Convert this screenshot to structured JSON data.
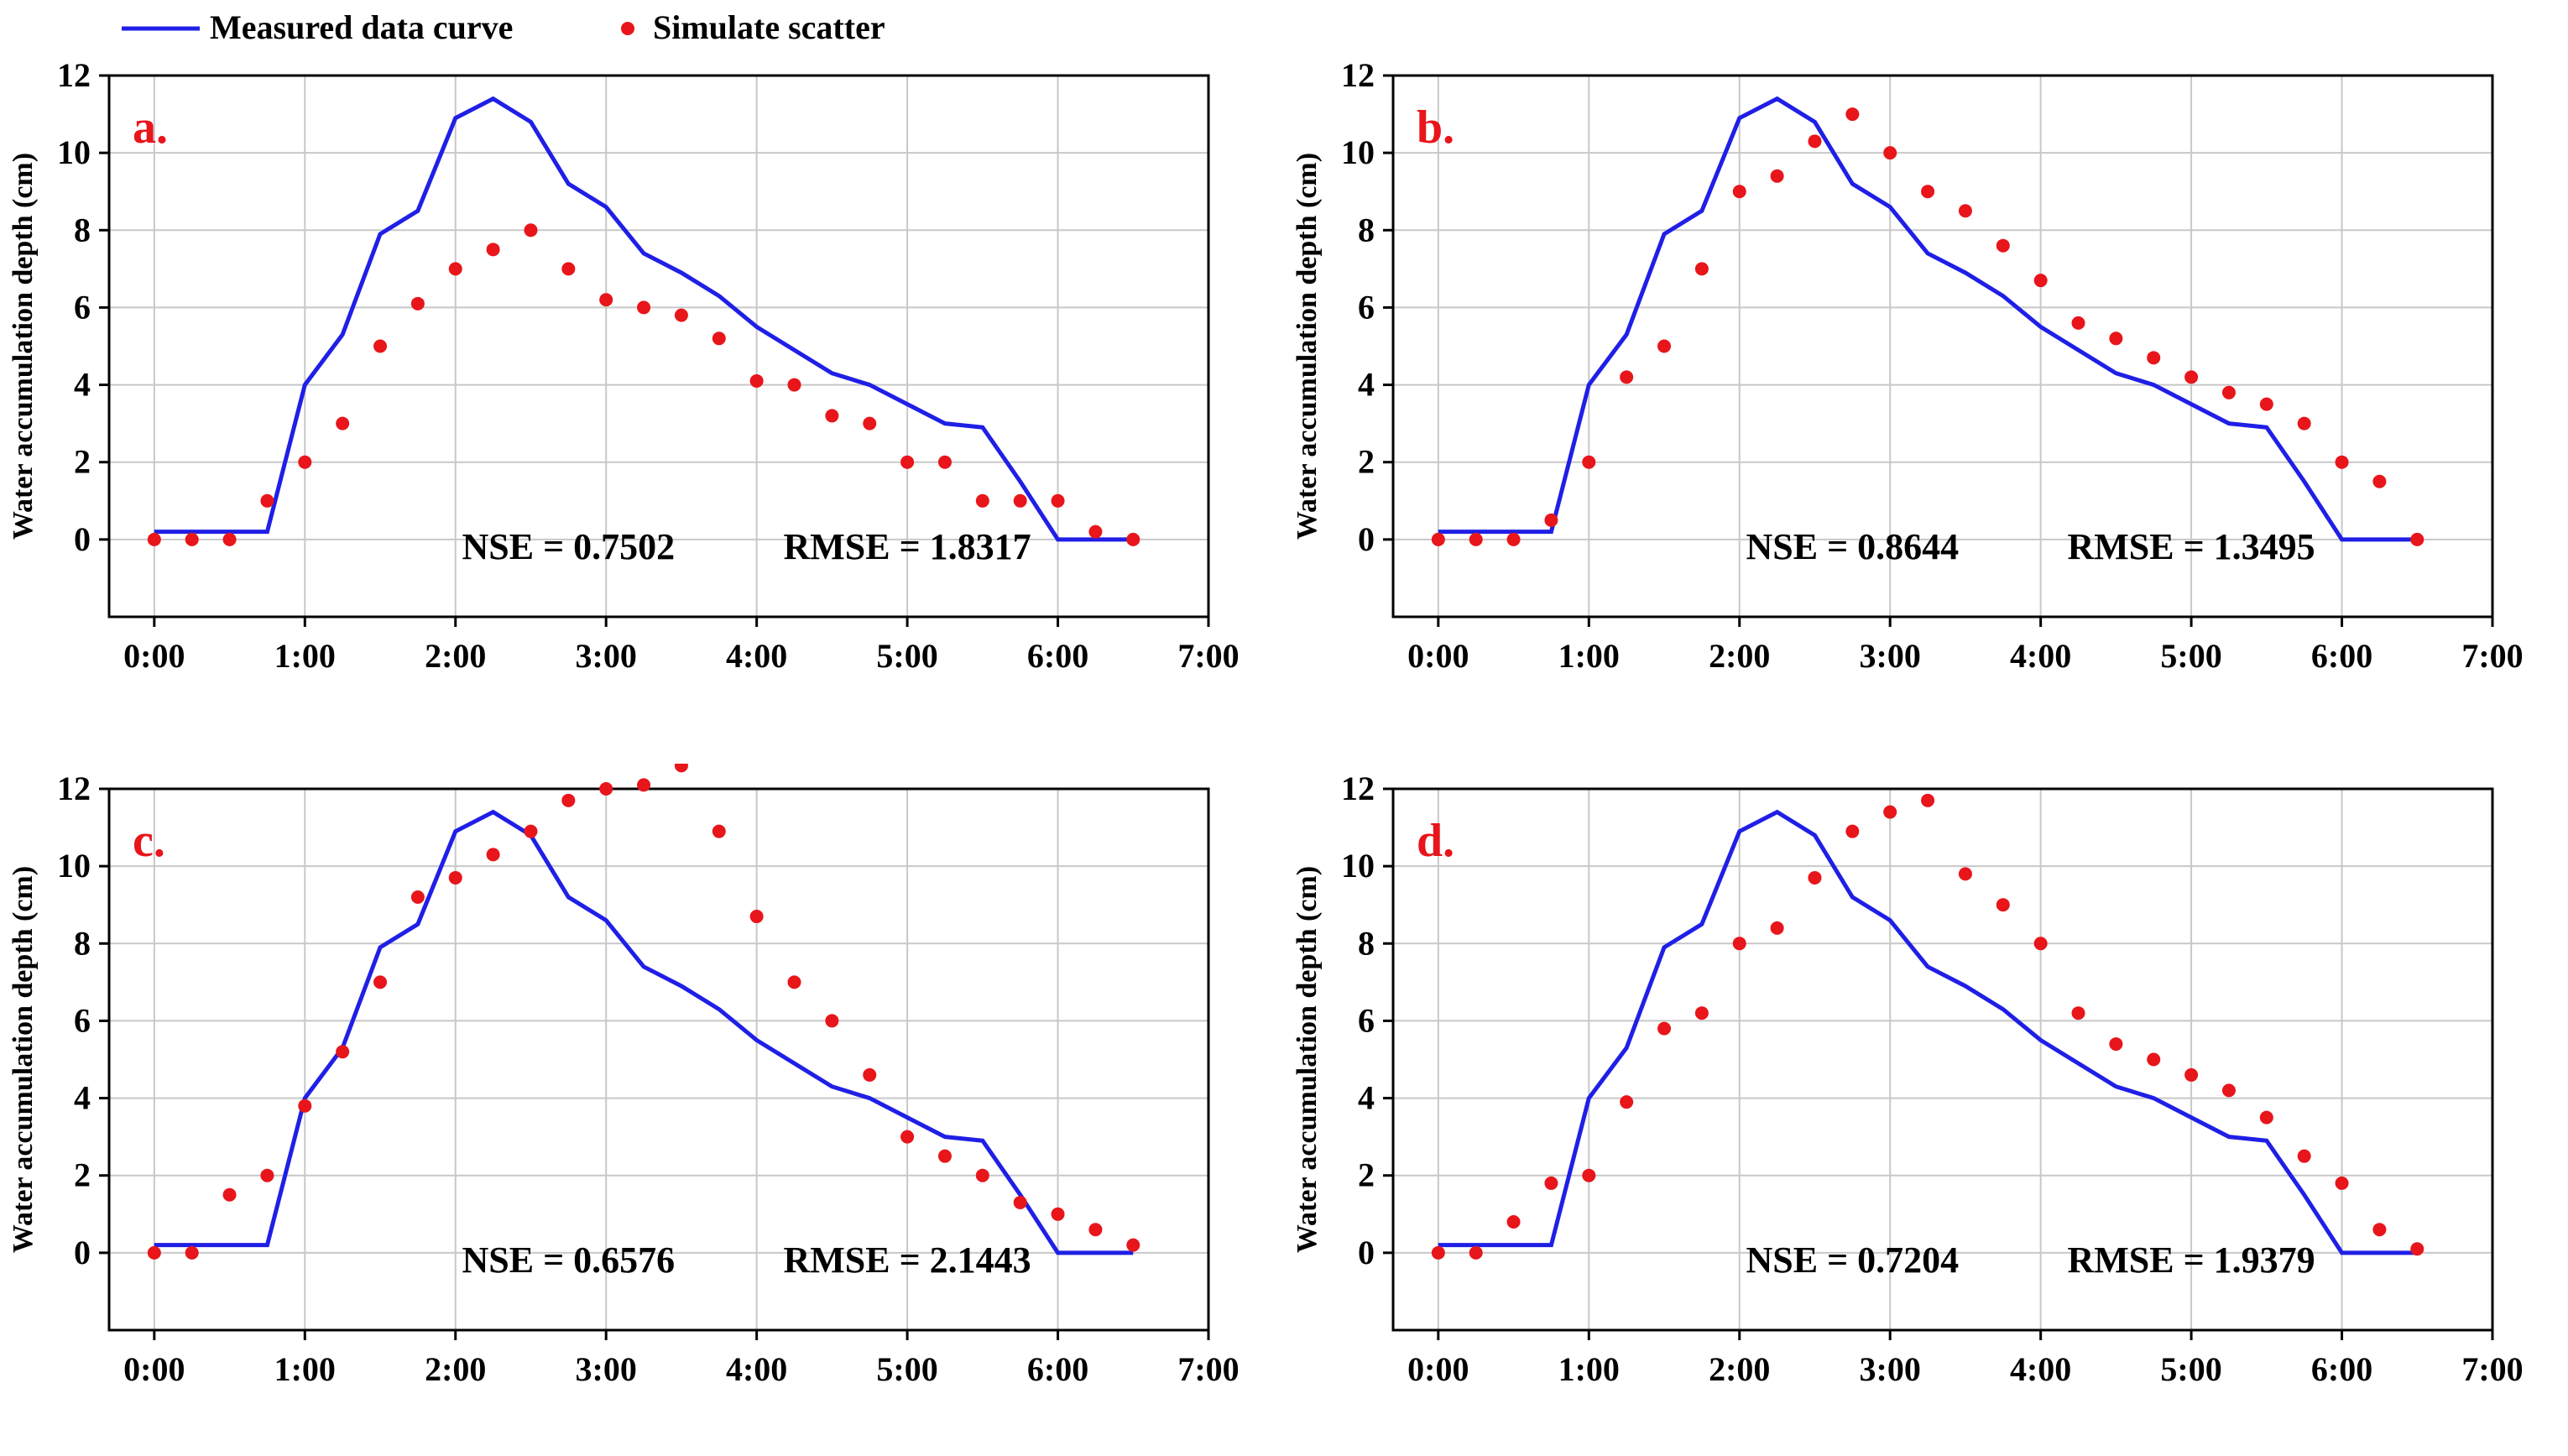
{
  "legend": {
    "line_label": "Measured data curve",
    "scatter_label": "Simulate scatter"
  },
  "colors": {
    "line": "#1f1fe6",
    "scatter": "#e8151b",
    "panel_letter": "#e8151b",
    "grid": "#c8c8c8"
  },
  "chart_data": [
    {
      "type": "line+scatter",
      "panel_label": "a.",
      "ylabel": "Water accumulation depth (cm)",
      "xlabel": "",
      "xlim": [
        -0.3,
        7.0
      ],
      "ylim": [
        -2,
        12
      ],
      "xticks": [
        0,
        1,
        2,
        3,
        4,
        5,
        6,
        7
      ],
      "xtick_labels": [
        "0:00",
        "1:00",
        "2:00",
        "3:00",
        "4:00",
        "5:00",
        "6:00",
        "7:00"
      ],
      "yticks": [
        0,
        2,
        4,
        6,
        8,
        10,
        12
      ],
      "ytick_labels": [
        "0",
        "2",
        "4",
        "6",
        "8",
        "10",
        "12"
      ],
      "nse_text": "NSE = 0.7502",
      "rmse_text": "RMSE = 1.8317",
      "series": [
        {
          "name": "Measured data curve",
          "kind": "line",
          "x": [
            0,
            0.25,
            0.5,
            0.75,
            1.0,
            1.25,
            1.5,
            1.75,
            2.0,
            2.25,
            2.5,
            2.75,
            3.0,
            3.25,
            3.5,
            3.75,
            4.0,
            4.25,
            4.5,
            4.75,
            5.0,
            5.25,
            5.5,
            5.75,
            6.0,
            6.25,
            6.5
          ],
          "y": [
            0.2,
            0.2,
            0.2,
            0.2,
            4.0,
            5.3,
            7.9,
            8.5,
            10.9,
            11.4,
            10.8,
            9.2,
            8.6,
            7.4,
            6.9,
            6.3,
            5.5,
            4.9,
            4.3,
            4.0,
            3.5,
            3.0,
            2.9,
            1.5,
            0.0,
            0.0,
            0.0
          ]
        },
        {
          "name": "Simulate scatter",
          "kind": "scatter",
          "x": [
            0,
            0.25,
            0.5,
            0.75,
            1.0,
            1.25,
            1.5,
            1.75,
            2.0,
            2.25,
            2.5,
            2.75,
            3.0,
            3.25,
            3.5,
            3.75,
            4.0,
            4.25,
            4.5,
            4.75,
            5.0,
            5.25,
            5.5,
            5.75,
            6.0,
            6.25,
            6.5
          ],
          "y": [
            0,
            0,
            0,
            1.0,
            2.0,
            3.0,
            5.0,
            6.1,
            7.0,
            7.5,
            8.0,
            7.0,
            6.2,
            6.0,
            5.8,
            5.2,
            4.1,
            4.0,
            3.2,
            3.0,
            2.0,
            2.0,
            1.0,
            1.0,
            1.0,
            0.2,
            0
          ]
        }
      ]
    },
    {
      "type": "line+scatter",
      "panel_label": "b.",
      "ylabel": "Water accumulation depth (cm)",
      "xlabel": "",
      "xlim": [
        -0.3,
        7.0
      ],
      "ylim": [
        -2,
        12
      ],
      "xticks": [
        0,
        1,
        2,
        3,
        4,
        5,
        6,
        7
      ],
      "xtick_labels": [
        "0:00",
        "1:00",
        "2:00",
        "3:00",
        "4:00",
        "5:00",
        "6:00",
        "7:00"
      ],
      "yticks": [
        0,
        2,
        4,
        6,
        8,
        10,
        12
      ],
      "ytick_labels": [
        "0",
        "2",
        "4",
        "6",
        "8",
        "10",
        "12"
      ],
      "nse_text": "NSE = 0.8644",
      "rmse_text": "RMSE = 1.3495",
      "series": [
        {
          "name": "Measured data curve",
          "kind": "line",
          "x": [
            0,
            0.25,
            0.5,
            0.75,
            1.0,
            1.25,
            1.5,
            1.75,
            2.0,
            2.25,
            2.5,
            2.75,
            3.0,
            3.25,
            3.5,
            3.75,
            4.0,
            4.25,
            4.5,
            4.75,
            5.0,
            5.25,
            5.5,
            5.75,
            6.0,
            6.25,
            6.5
          ],
          "y": [
            0.2,
            0.2,
            0.2,
            0.2,
            4.0,
            5.3,
            7.9,
            8.5,
            10.9,
            11.4,
            10.8,
            9.2,
            8.6,
            7.4,
            6.9,
            6.3,
            5.5,
            4.9,
            4.3,
            4.0,
            3.5,
            3.0,
            2.9,
            1.5,
            0.0,
            0.0,
            0.0
          ]
        },
        {
          "name": "Simulate scatter",
          "kind": "scatter",
          "x": [
            0,
            0.25,
            0.5,
            0.75,
            1.0,
            1.25,
            1.5,
            1.75,
            2.0,
            2.25,
            2.5,
            2.75,
            3.0,
            3.25,
            3.5,
            3.75,
            4.0,
            4.25,
            4.5,
            4.75,
            5.0,
            5.25,
            5.5,
            5.75,
            6.0,
            6.25,
            6.5
          ],
          "y": [
            0,
            0,
            0,
            0.5,
            2.0,
            4.2,
            5.0,
            7.0,
            9.0,
            9.4,
            10.3,
            11.0,
            10.0,
            9.0,
            8.5,
            7.6,
            6.7,
            5.6,
            5.2,
            4.7,
            4.2,
            3.8,
            3.5,
            3.0,
            2.0,
            1.5,
            0
          ]
        }
      ]
    },
    {
      "type": "line+scatter",
      "panel_label": "c.",
      "ylabel": "Water accumulation depth (cm)",
      "xlabel": "",
      "xlim": [
        -0.3,
        7.0
      ],
      "ylim": [
        -2,
        12
      ],
      "xticks": [
        0,
        1,
        2,
        3,
        4,
        5,
        6,
        7
      ],
      "xtick_labels": [
        "0:00",
        "1:00",
        "2:00",
        "3:00",
        "4:00",
        "5:00",
        "6:00",
        "7:00"
      ],
      "yticks": [
        0,
        2,
        4,
        6,
        8,
        10,
        12
      ],
      "ytick_labels": [
        "0",
        "2",
        "4",
        "6",
        "8",
        "10",
        "12"
      ],
      "nse_text": "NSE = 0.6576",
      "rmse_text": "RMSE = 2.1443",
      "series": [
        {
          "name": "Measured data curve",
          "kind": "line",
          "x": [
            0,
            0.25,
            0.5,
            0.75,
            1.0,
            1.25,
            1.5,
            1.75,
            2.0,
            2.25,
            2.5,
            2.75,
            3.0,
            3.25,
            3.5,
            3.75,
            4.0,
            4.25,
            4.5,
            4.75,
            5.0,
            5.25,
            5.5,
            5.75,
            6.0,
            6.25,
            6.5
          ],
          "y": [
            0.2,
            0.2,
            0.2,
            0.2,
            4.0,
            5.3,
            7.9,
            8.5,
            10.9,
            11.4,
            10.8,
            9.2,
            8.6,
            7.4,
            6.9,
            6.3,
            5.5,
            4.9,
            4.3,
            4.0,
            3.5,
            3.0,
            2.9,
            1.5,
            0.0,
            0.0,
            0.0
          ]
        },
        {
          "name": "Simulate scatter",
          "kind": "scatter",
          "x": [
            0,
            0.25,
            0.5,
            0.75,
            1.0,
            1.25,
            1.5,
            1.75,
            2.0,
            2.25,
            2.5,
            2.75,
            3.0,
            3.25,
            3.5,
            3.75,
            4.0,
            4.25,
            4.5,
            4.75,
            5.0,
            5.25,
            5.5,
            5.75,
            6.0,
            6.25,
            6.5
          ],
          "y": [
            0,
            0,
            1.5,
            2.0,
            3.8,
            5.2,
            7.0,
            9.2,
            9.7,
            10.3,
            10.9,
            11.7,
            12.0,
            12.1,
            12.6,
            10.9,
            8.7,
            7.0,
            6.0,
            4.6,
            3.0,
            2.5,
            2.0,
            1.3,
            1.0,
            0.6,
            0.2
          ]
        }
      ]
    },
    {
      "type": "line+scatter",
      "panel_label": "d.",
      "ylabel": "Water accumulation depth (cm)",
      "xlabel": "",
      "xlim": [
        -0.3,
        7.0
      ],
      "ylim": [
        -2,
        12
      ],
      "xticks": [
        0,
        1,
        2,
        3,
        4,
        5,
        6,
        7
      ],
      "xtick_labels": [
        "0:00",
        "1:00",
        "2:00",
        "3:00",
        "4:00",
        "5:00",
        "6:00",
        "7:00"
      ],
      "yticks": [
        0,
        2,
        4,
        6,
        8,
        10,
        12
      ],
      "ytick_labels": [
        "0",
        "2",
        "4",
        "6",
        "8",
        "10",
        "12"
      ],
      "nse_text": "NSE = 0.7204",
      "rmse_text": "RMSE = 1.9379",
      "series": [
        {
          "name": "Measured data curve",
          "kind": "line",
          "x": [
            0,
            0.25,
            0.5,
            0.75,
            1.0,
            1.25,
            1.5,
            1.75,
            2.0,
            2.25,
            2.5,
            2.75,
            3.0,
            3.25,
            3.5,
            3.75,
            4.0,
            4.25,
            4.5,
            4.75,
            5.0,
            5.25,
            5.5,
            5.75,
            6.0,
            6.25,
            6.5
          ],
          "y": [
            0.2,
            0.2,
            0.2,
            0.2,
            4.0,
            5.3,
            7.9,
            8.5,
            10.9,
            11.4,
            10.8,
            9.2,
            8.6,
            7.4,
            6.9,
            6.3,
            5.5,
            4.9,
            4.3,
            4.0,
            3.5,
            3.0,
            2.9,
            1.5,
            0.0,
            0.0,
            0.0
          ]
        },
        {
          "name": "Simulate scatter",
          "kind": "scatter",
          "x": [
            0,
            0.25,
            0.5,
            0.75,
            1.0,
            1.25,
            1.5,
            1.75,
            2.0,
            2.25,
            2.5,
            2.75,
            3.0,
            3.25,
            3.5,
            3.75,
            4.0,
            4.25,
            4.5,
            4.75,
            5.0,
            5.25,
            5.5,
            5.75,
            6.0,
            6.25,
            6.5
          ],
          "y": [
            0,
            0,
            0.8,
            1.8,
            2.0,
            3.9,
            5.8,
            6.2,
            8.0,
            8.4,
            9.7,
            10.9,
            11.4,
            11.7,
            9.8,
            9.0,
            8.0,
            6.2,
            5.4,
            5.0,
            4.6,
            4.2,
            3.5,
            2.5,
            1.8,
            0.6,
            0.1
          ]
        }
      ]
    }
  ]
}
